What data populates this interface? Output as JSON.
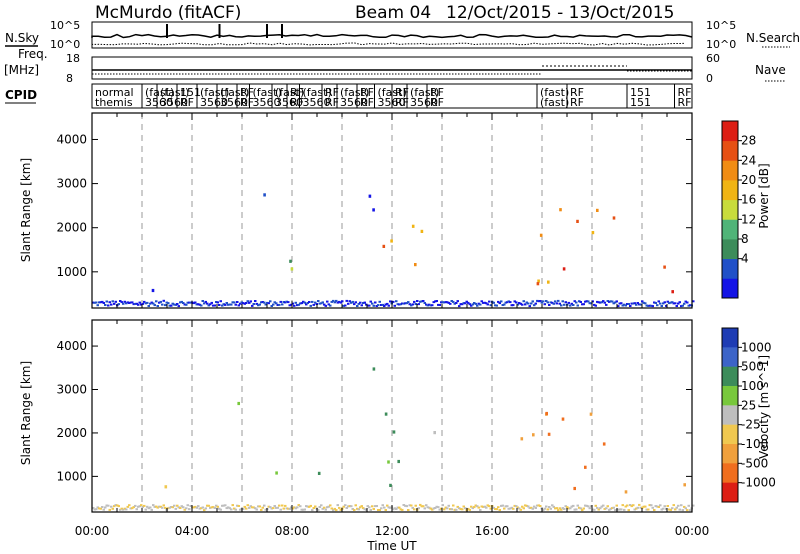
{
  "header": {
    "station": "McMurdo (fitACF)",
    "beam": "Beam 04",
    "date_range": "12/Oct/2015 - 13/Oct/2015"
  },
  "strips": {
    "nsky_label": "N.Sky",
    "nsky_ticks": [
      "10^5",
      "10^0"
    ],
    "nsky_right_ticks": [
      "10^5",
      "10^0"
    ],
    "nsearch_label": "N.Search",
    "freq_label_top": "Freq.",
    "freq_label_unit": "[MHz]",
    "freq_ticks": [
      "18",
      "8"
    ],
    "nave_ticks": [
      "60",
      "0"
    ],
    "nave_label": "Nave",
    "cpid_label": "CPID",
    "cpid_row1": [
      "normal",
      "(fast)",
      "(fast)",
      "151",
      "(fast)",
      "(fast)",
      "RF",
      "(fast)",
      "(fast)",
      "RF",
      "(fast)",
      "RF",
      "(fast)",
      "RF",
      "(fast)",
      "RF",
      "(fast)",
      "RF",
      "(fast)",
      "RF",
      "151",
      "RF"
    ],
    "cpid_row2": [
      "themis",
      "3560",
      "3560",
      "RF",
      "3560",
      "3560",
      "RF",
      "3560",
      "3560",
      "RF",
      "3560",
      "RF",
      "3560",
      "RF",
      "3560",
      "RF",
      "3560",
      "RF",
      "(fast)",
      "RF",
      "151",
      "RF"
    ]
  },
  "x_axis": {
    "title": "Time UT",
    "ticks": [
      "00:00",
      "04:00",
      "08:00",
      "12:00",
      "16:00",
      "20:00",
      "00:00"
    ]
  },
  "panels": [
    {
      "ylabel": "Slant Range [km]",
      "yticks": [
        "4000",
        "3000",
        "2000",
        "1000"
      ],
      "colorbar_label": "Power [dB]",
      "colorbar_ticks": [
        "28",
        "24",
        "20",
        "16",
        "12",
        "8",
        "4"
      ],
      "colors": [
        "#1414e6",
        "#2050c8",
        "#3c8c5a",
        "#50b478",
        "#c8dc3c",
        "#f0b414",
        "#f08c14",
        "#e65014",
        "#dc1e14"
      ]
    },
    {
      "ylabel": "Slant Range [km]",
      "yticks": [
        "4000",
        "3000",
        "2000",
        "1000"
      ],
      "colorbar_label": "Velocity [m s^-1]",
      "colorbar_ticks": [
        "1000",
        "500",
        "100",
        "25",
        "-25",
        "-100",
        "-500",
        "-1000"
      ],
      "colors": [
        "#1e3cb4",
        "#3c64c8",
        "#3c8c5a",
        "#78c83c",
        "#bebebe",
        "#f0c850",
        "#f0a03c",
        "#f06e1e",
        "#dc1e14"
      ]
    }
  ],
  "chart_data": {
    "type": "heatmap",
    "title": "McMurdo (fitACF)  Beam 04  12/Oct/2015 - 13/Oct/2015",
    "xlabel": "Time UT",
    "xlim_hours": [
      0,
      24
    ],
    "ylim_km": [
      180,
      4600
    ],
    "grid": "vertical dashed every 2 hours",
    "features": [
      {
        "t": [
          0.8,
          1.3
        ],
        "r": [
          640,
          740
        ],
        "power_db": 6,
        "velocity": 0
      },
      {
        "t": [
          2.3,
          3.5
        ],
        "r": [
          600,
          1100
        ],
        "power_db": 7,
        "velocity": 0
      },
      {
        "t": [
          5.6,
          7.0
        ],
        "r": [
          2400,
          3200
        ],
        "power_db": 12,
        "velocity": 10
      },
      {
        "t": [
          6.8,
          9.5
        ],
        "r": [
          750,
          1300
        ],
        "power_db": 11,
        "velocity": 30
      },
      {
        "t": [
          10.5,
          11.8
        ],
        "r": [
          2000,
          3600
        ],
        "power_db": 7,
        "velocity": 100
      },
      {
        "t": [
          11.0,
          14.2
        ],
        "r": [
          650,
          2100
        ],
        "power_db": 22,
        "velocity": 120
      },
      {
        "t": [
          17.0,
          21.0
        ],
        "r": [
          450,
          2600
        ],
        "power_db": 24,
        "velocity": -500
      },
      {
        "t": [
          21.0,
          23.8
        ],
        "r": [
          500,
          1200
        ],
        "power_db": 26,
        "velocity": -300
      }
    ]
  }
}
